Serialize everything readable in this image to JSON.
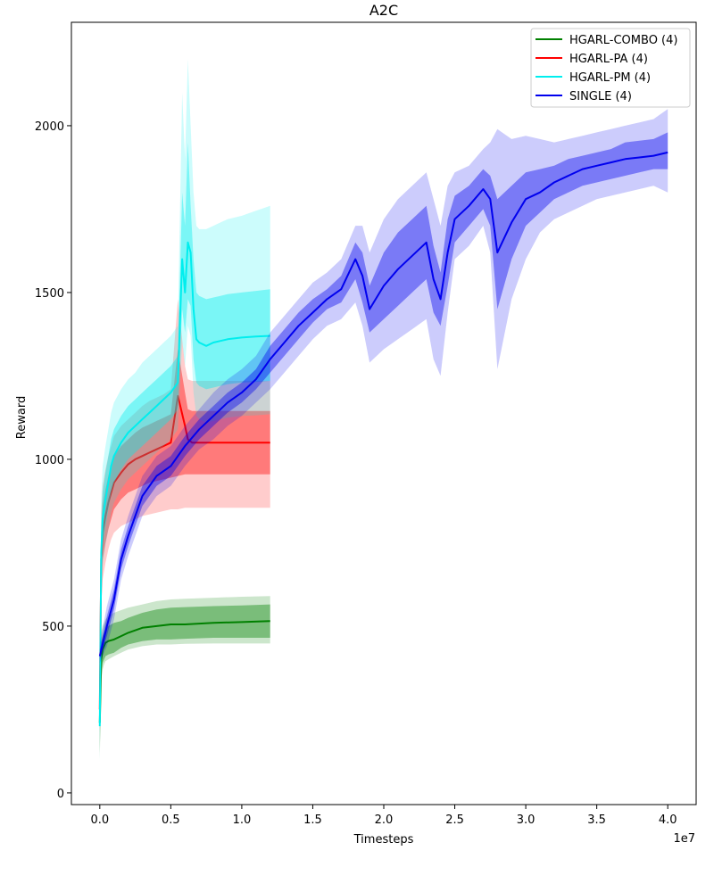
{
  "chart_data": {
    "type": "line",
    "title": "A2C",
    "xlabel": "Timesteps",
    "ylabel": "Reward",
    "x_offset_label": "1e7",
    "xlim": [
      -0.2,
      4.2
    ],
    "ylim": [
      -35,
      2310
    ],
    "xticks": [
      0.0,
      0.5,
      1.0,
      1.5,
      2.0,
      2.5,
      3.0,
      3.5,
      4.0
    ],
    "xtick_labels": [
      "0.0",
      "0.5",
      "1.0",
      "1.5",
      "2.0",
      "2.5",
      "3.0",
      "3.5",
      "4.0"
    ],
    "yticks": [
      0,
      500,
      1000,
      1500,
      2000
    ],
    "ytick_labels": [
      "0",
      "500",
      "1000",
      "1500",
      "2000"
    ],
    "grid": false,
    "legend_position": "top-right",
    "series": [
      {
        "name": "HGARL-COMBO (4)",
        "color": "#008000",
        "x": [
          0.0,
          0.01,
          0.02,
          0.03,
          0.04,
          0.06,
          0.1,
          0.15,
          0.2,
          0.3,
          0.4,
          0.5,
          0.6,
          0.8,
          1.0,
          1.2
        ],
        "y": [
          210,
          400,
          430,
          440,
          450,
          455,
          460,
          470,
          480,
          495,
          500,
          505,
          505,
          510,
          512,
          515
        ],
        "y_low": [
          120,
          360,
          390,
          400,
          410,
          415,
          420,
          435,
          445,
          455,
          460,
          460,
          462,
          465,
          465,
          465
        ],
        "y_high": [
          280,
          450,
          470,
          480,
          490,
          500,
          510,
          515,
          525,
          540,
          550,
          555,
          557,
          560,
          562,
          565
        ],
        "y_min": [
          100,
          340,
          370,
          385,
          395,
          400,
          410,
          420,
          430,
          440,
          445,
          445,
          447,
          448,
          448,
          448
        ],
        "y_max": [
          310,
          480,
          500,
          510,
          520,
          530,
          540,
          548,
          555,
          565,
          575,
          580,
          582,
          585,
          588,
          590
        ]
      },
      {
        "name": "HGARL-PA (4)",
        "color": "#ff0000",
        "x": [
          0.0,
          0.01,
          0.02,
          0.04,
          0.06,
          0.08,
          0.1,
          0.15,
          0.2,
          0.25,
          0.3,
          0.35,
          0.4,
          0.45,
          0.5,
          0.55,
          0.6,
          0.62,
          0.65,
          0.7,
          0.8,
          1.0,
          1.2
        ],
        "y": [
          250,
          700,
          780,
          830,
          870,
          900,
          930,
          960,
          985,
          1000,
          1010,
          1020,
          1030,
          1040,
          1050,
          1190,
          1100,
          1060,
          1050,
          1050,
          1050,
          1050,
          1050
        ],
        "y_low": [
          200,
          620,
          700,
          750,
          790,
          820,
          850,
          880,
          900,
          910,
          920,
          930,
          935,
          940,
          945,
          950,
          955,
          955,
          955,
          955,
          955,
          955,
          955
        ],
        "y_high": [
          300,
          780,
          860,
          910,
          950,
          980,
          1010,
          1040,
          1060,
          1080,
          1095,
          1105,
          1115,
          1125,
          1135,
          1330,
          1200,
          1150,
          1145,
          1145,
          1145,
          1145,
          1145
        ],
        "y_min": [
          180,
          560,
          640,
          690,
          730,
          760,
          780,
          800,
          810,
          820,
          830,
          835,
          840,
          845,
          850,
          850,
          855,
          855,
          855,
          855,
          855,
          855,
          855
        ],
        "y_max": [
          330,
          840,
          920,
          970,
          1010,
          1040,
          1070,
          1100,
          1120,
          1140,
          1160,
          1175,
          1185,
          1195,
          1210,
          1480,
          1280,
          1240,
          1235,
          1235,
          1235,
          1235,
          1235
        ]
      },
      {
        "name": "HGARL-PM (4)",
        "color": "#00eeee",
        "x": [
          0.0,
          0.01,
          0.02,
          0.04,
          0.06,
          0.08,
          0.1,
          0.15,
          0.2,
          0.25,
          0.3,
          0.35,
          0.4,
          0.45,
          0.5,
          0.55,
          0.58,
          0.6,
          0.62,
          0.64,
          0.66,
          0.68,
          0.7,
          0.75,
          0.8,
          0.85,
          0.9,
          1.0,
          1.1,
          1.2
        ],
        "y": [
          200,
          720,
          820,
          880,
          930,
          980,
          1010,
          1050,
          1080,
          1100,
          1120,
          1140,
          1160,
          1180,
          1200,
          1230,
          1600,
          1500,
          1650,
          1620,
          1450,
          1360,
          1350,
          1340,
          1350,
          1355,
          1360,
          1365,
          1368,
          1370
        ],
        "y_low": [
          150,
          640,
          740,
          800,
          850,
          900,
          930,
          970,
          1000,
          1020,
          1040,
          1060,
          1080,
          1100,
          1120,
          1150,
          1450,
          1380,
          1480,
          1460,
          1300,
          1230,
          1220,
          1210,
          1215,
          1220,
          1225,
          1230,
          1232,
          1235
        ],
        "y_high": [
          260,
          800,
          900,
          960,
          1010,
          1060,
          1090,
          1130,
          1160,
          1180,
          1200,
          1220,
          1240,
          1260,
          1280,
          1310,
          1800,
          1700,
          1950,
          1760,
          1600,
          1500,
          1490,
          1480,
          1485,
          1490,
          1495,
          1500,
          1505,
          1510
        ],
        "y_min": [
          90,
          570,
          680,
          740,
          790,
          840,
          870,
          910,
          940,
          960,
          980,
          1000,
          1020,
          1040,
          1060,
          1090,
          1350,
          1280,
          1400,
          1370,
          1200,
          1130,
          1120,
          1110,
          1115,
          1120,
          1125,
          1130,
          1132,
          1135
        ],
        "y_max": [
          330,
          880,
          980,
          1040,
          1090,
          1140,
          1170,
          1210,
          1240,
          1260,
          1290,
          1310,
          1330,
          1350,
          1370,
          1400,
          2100,
          1900,
          2200,
          2000,
          1800,
          1700,
          1690,
          1690,
          1700,
          1710,
          1720,
          1730,
          1745,
          1760
        ]
      },
      {
        "name": "SINGLE (4)",
        "color": "#0000ee",
        "x": [
          0.0,
          0.05,
          0.1,
          0.15,
          0.2,
          0.3,
          0.4,
          0.5,
          0.6,
          0.7,
          0.8,
          0.9,
          1.0,
          1.1,
          1.2,
          1.3,
          1.4,
          1.5,
          1.6,
          1.7,
          1.8,
          1.85,
          1.9,
          2.0,
          2.1,
          2.2,
          2.3,
          2.35,
          2.4,
          2.45,
          2.5,
          2.6,
          2.7,
          2.75,
          2.8,
          2.9,
          3.0,
          3.1,
          3.2,
          3.3,
          3.4,
          3.5,
          3.6,
          3.7,
          3.8,
          3.9,
          4.0
        ],
        "y": [
          410,
          500,
          580,
          700,
          770,
          890,
          950,
          980,
          1040,
          1090,
          1130,
          1170,
          1200,
          1240,
          1300,
          1350,
          1400,
          1440,
          1480,
          1510,
          1600,
          1550,
          1450,
          1520,
          1570,
          1610,
          1650,
          1540,
          1480,
          1620,
          1720,
          1760,
          1810,
          1780,
          1620,
          1710,
          1780,
          1800,
          1830,
          1850,
          1870,
          1880,
          1890,
          1900,
          1905,
          1910,
          1920
        ],
        "y_low": [
          400,
          470,
          550,
          670,
          740,
          860,
          920,
          950,
          1010,
          1060,
          1100,
          1140,
          1170,
          1210,
          1260,
          1310,
          1360,
          1410,
          1450,
          1470,
          1540,
          1470,
          1380,
          1420,
          1460,
          1500,
          1540,
          1440,
          1400,
          1520,
          1650,
          1700,
          1750,
          1700,
          1450,
          1600,
          1700,
          1740,
          1780,
          1800,
          1820,
          1830,
          1840,
          1850,
          1860,
          1870,
          1870
        ],
        "y_high": [
          430,
          530,
          610,
          730,
          800,
          920,
          980,
          1010,
          1070,
          1120,
          1160,
          1200,
          1230,
          1270,
          1340,
          1390,
          1440,
          1480,
          1510,
          1550,
          1650,
          1620,
          1520,
          1620,
          1680,
          1720,
          1760,
          1640,
          1560,
          1720,
          1790,
          1820,
          1870,
          1850,
          1780,
          1820,
          1860,
          1870,
          1880,
          1900,
          1910,
          1920,
          1930,
          1950,
          1955,
          1960,
          1980
        ],
        "y_min": [
          390,
          440,
          520,
          640,
          710,
          830,
          890,
          920,
          980,
          1030,
          1060,
          1100,
          1130,
          1170,
          1210,
          1260,
          1310,
          1360,
          1400,
          1420,
          1470,
          1400,
          1290,
          1330,
          1360,
          1390,
          1420,
          1300,
          1250,
          1440,
          1600,
          1640,
          1700,
          1620,
          1270,
          1480,
          1600,
          1680,
          1720,
          1740,
          1760,
          1780,
          1790,
          1800,
          1810,
          1820,
          1800
        ],
        "y_max": [
          450,
          560,
          640,
          760,
          830,
          950,
          1010,
          1040,
          1100,
          1150,
          1200,
          1240,
          1270,
          1310,
          1380,
          1430,
          1480,
          1530,
          1560,
          1600,
          1700,
          1700,
          1620,
          1720,
          1780,
          1820,
          1860,
          1780,
          1700,
          1820,
          1860,
          1880,
          1930,
          1950,
          1990,
          1960,
          1970,
          1960,
          1950,
          1960,
          1970,
          1980,
          1990,
          2000,
          2010,
          2020,
          2050
        ]
      }
    ]
  }
}
